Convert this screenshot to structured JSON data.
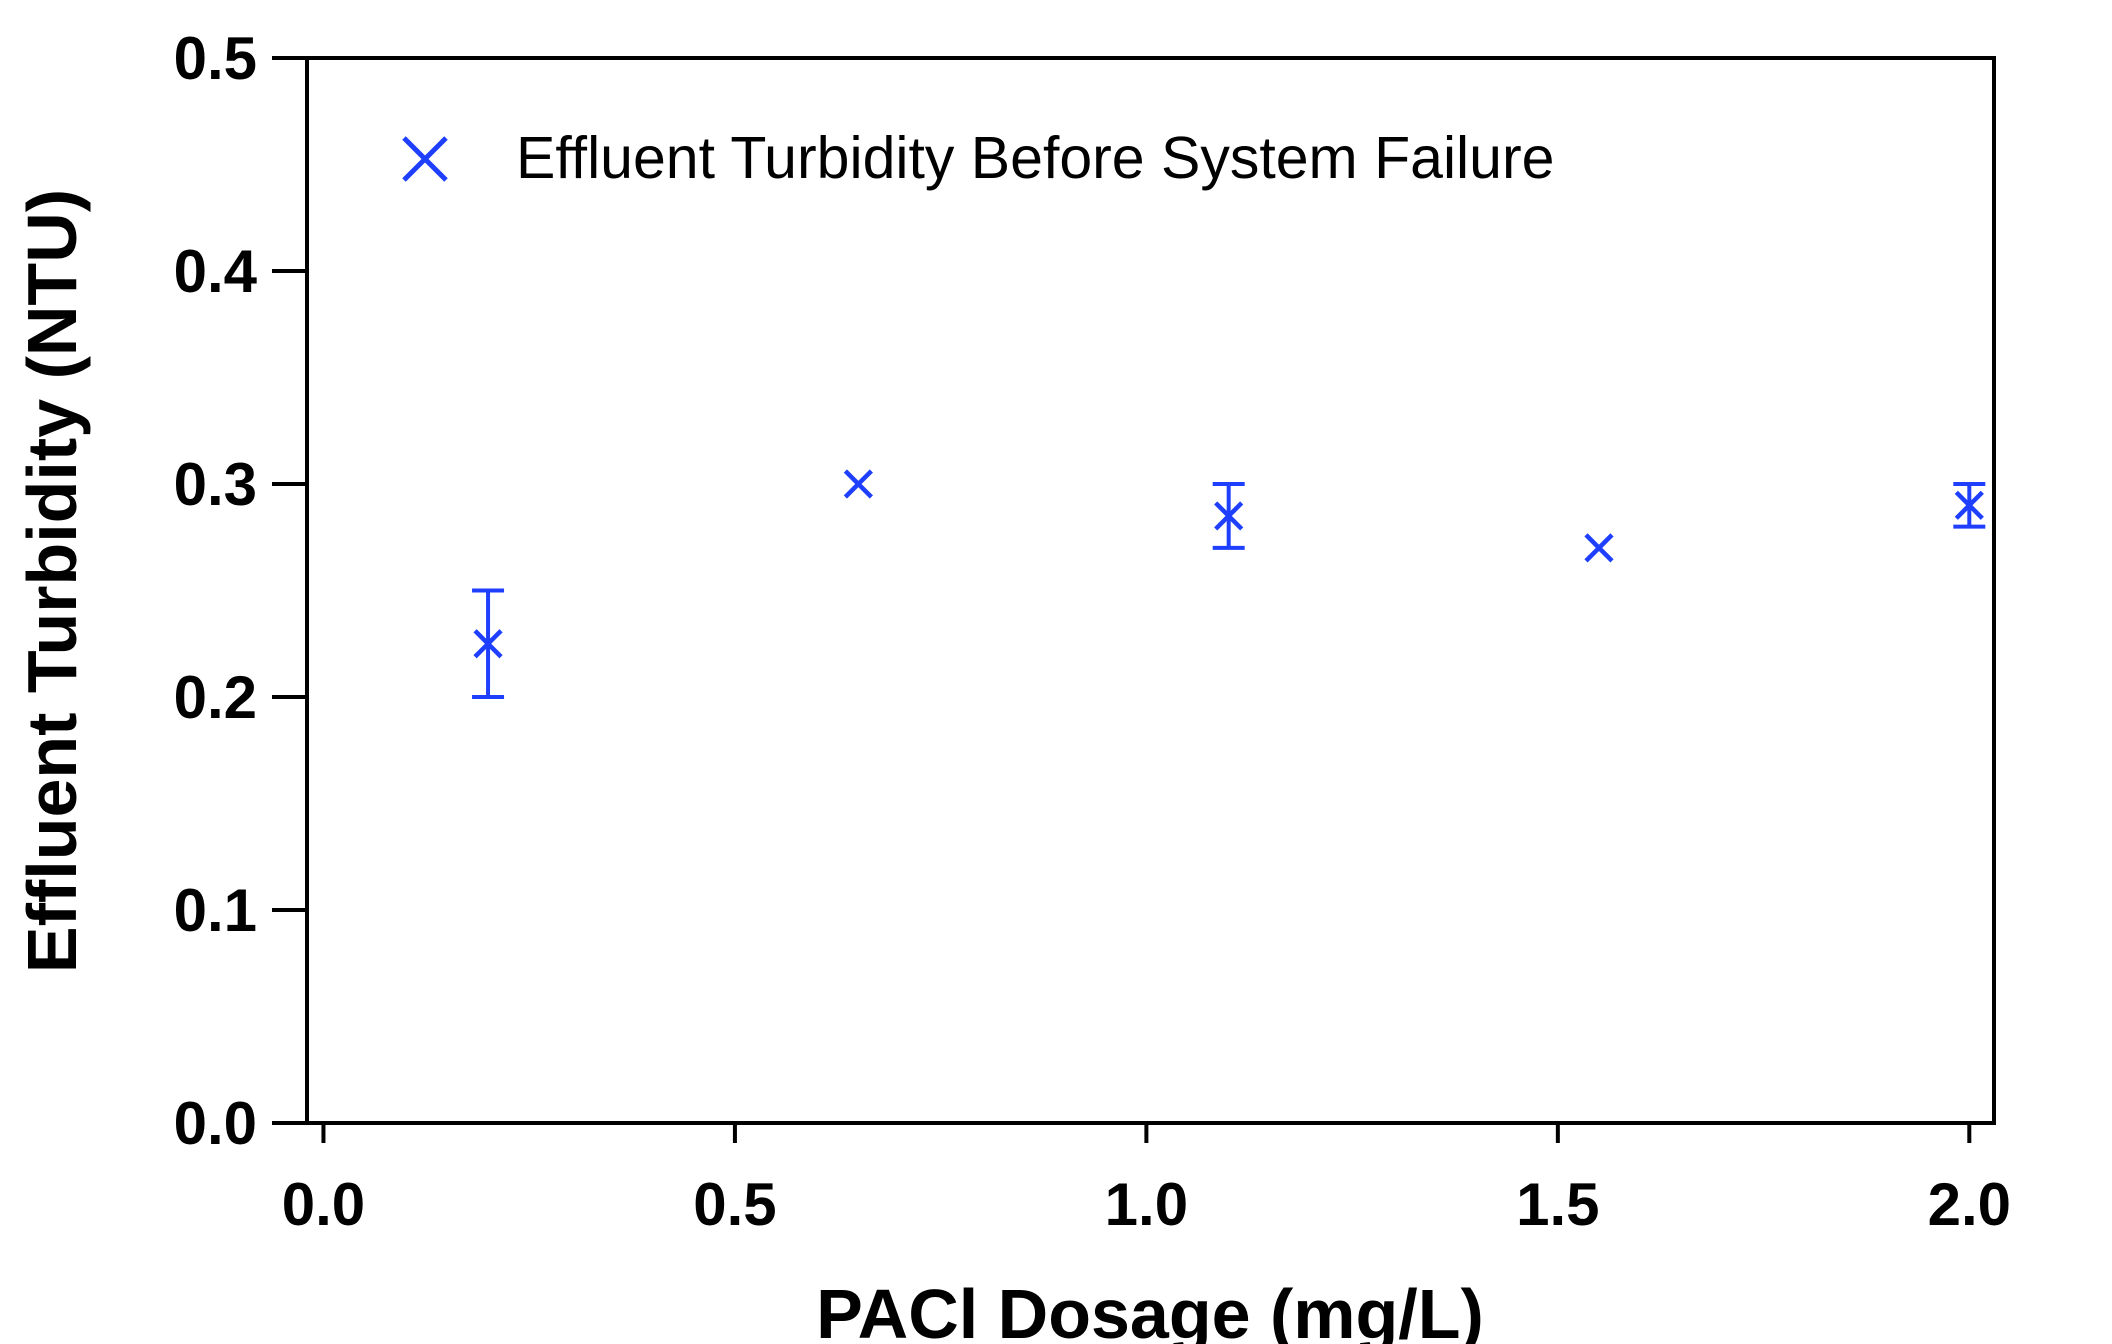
{
  "chart_data": {
    "type": "scatter",
    "title": "",
    "xlabel": "PACl Dosage (mg/L)",
    "ylabel": "Effluent Turbidity (NTU)",
    "xlim": [
      -0.02,
      2.03
    ],
    "ylim": [
      0.0,
      0.5
    ],
    "x_ticks": [
      "0.0",
      "0.5",
      "1.0",
      "1.5",
      "2.0"
    ],
    "y_ticks": [
      "0.0",
      "0.1",
      "0.2",
      "0.3",
      "0.4",
      "0.5"
    ],
    "grid": false,
    "legend_position": "top-left",
    "marker": "x",
    "colors": {
      "series": "#1f3fff",
      "axis": "#000000"
    },
    "series": [
      {
        "name": "Effluent Turbidity Before System Failure",
        "x": [
          0.2,
          0.65,
          1.1,
          1.55,
          2.0
        ],
        "y": [
          0.225,
          0.3,
          0.285,
          0.27,
          0.29
        ],
        "error": [
          0.025,
          0.0,
          0.015,
          0.0,
          0.01
        ]
      }
    ]
  }
}
